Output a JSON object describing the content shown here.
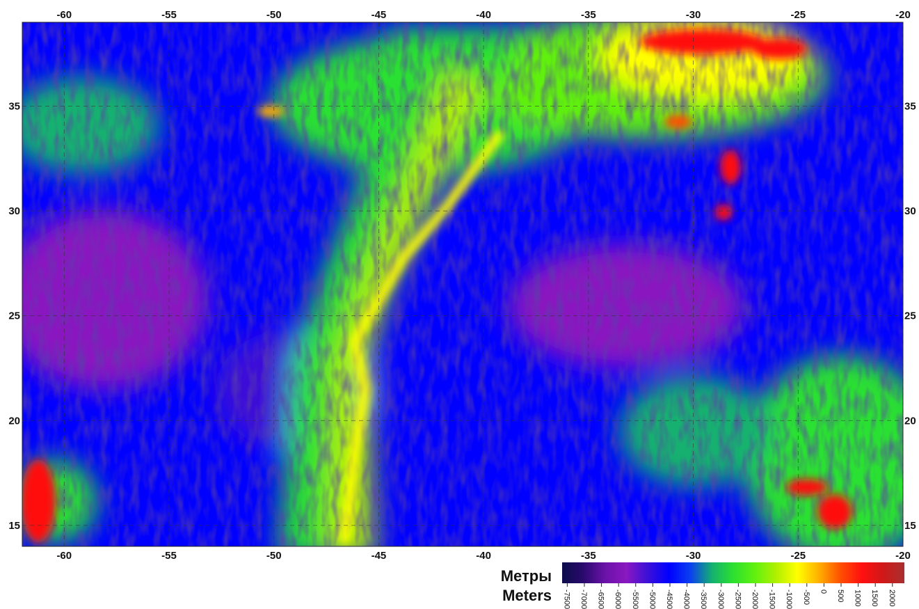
{
  "map": {
    "xlim": [
      -62,
      -20
    ],
    "ylim": [
      14,
      39
    ],
    "xticks": [
      -60,
      -55,
      -50,
      -45,
      -40,
      -35,
      -30,
      -25,
      -20
    ],
    "yticks": [
      15,
      20,
      25,
      30,
      35
    ],
    "grid": true,
    "colorbar": {
      "labels": [
        "Метры",
        "Meters"
      ],
      "clim": [
        -7650,
        2350
      ],
      "ticks": [
        -7500,
        -7000,
        -6500,
        -6000,
        -5500,
        -5000,
        -4500,
        -4000,
        -3500,
        -3000,
        -2500,
        -2000,
        -1500,
        -1000,
        -500,
        0,
        500,
        1000,
        1500,
        2000
      ],
      "colormap": [
        "#0c0c4a",
        "#2a0a6e",
        "#6a12a8",
        "#8a18c0",
        "#3c10d8",
        "#0000ff",
        "#0a40f0",
        "#14b070",
        "#2ce030",
        "#60f010",
        "#b0f000",
        "#ffff00",
        "#ffb000",
        "#ff5000",
        "#ff1010",
        "#d01818",
        "#a83030"
      ]
    }
  }
}
